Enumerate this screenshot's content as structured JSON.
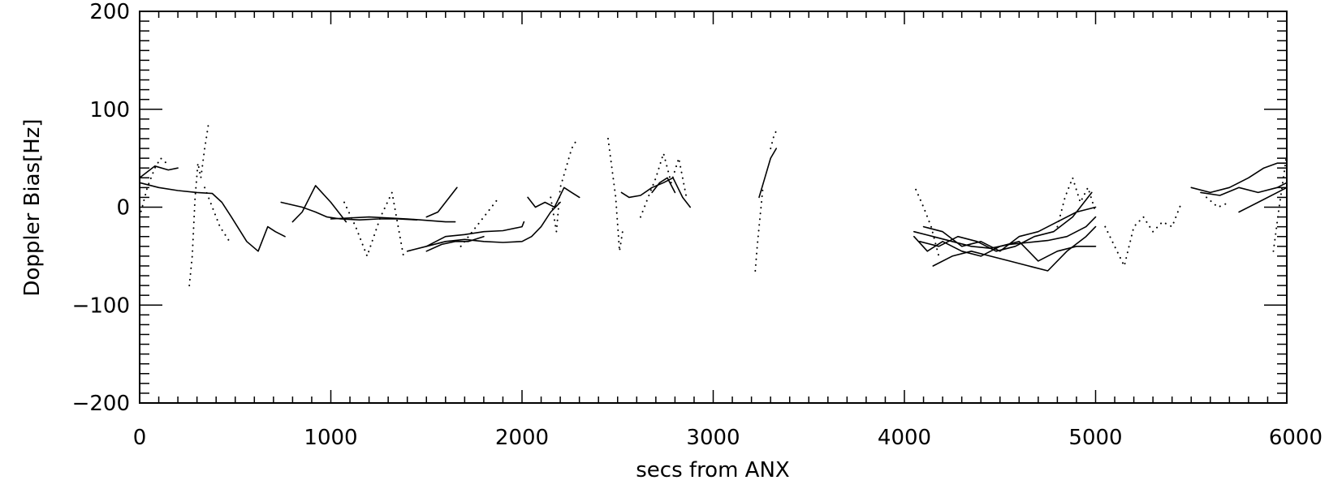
{
  "chart_data": {
    "type": "line",
    "title": "",
    "xlabel": "secs from ANX",
    "ylabel": "Doppler Bias[Hz]",
    "xlim": [
      0,
      6000
    ],
    "ylim": [
      -200,
      200
    ],
    "grid": false,
    "x_ticks": [
      0,
      1000,
      2000,
      3000,
      4000,
      5000,
      6000
    ],
    "x_tick_labels": [
      "0",
      "1000",
      "2000",
      "3000",
      "4000",
      "5000",
      "6000"
    ],
    "y_ticks": [
      -200,
      -100,
      0,
      100,
      200
    ],
    "y_tick_labels": [
      "−200",
      "−100",
      "0",
      "100",
      "200"
    ],
    "line_color": "#000000",
    "series": [
      {
        "style": "solid",
        "x": [
          0,
          80,
          150,
          200
        ],
        "y": [
          30,
          42,
          38,
          40
        ]
      },
      {
        "style": "dotted",
        "x": [
          0,
          40,
          80,
          110,
          140
        ],
        "y": [
          -10,
          20,
          40,
          50,
          45
        ]
      },
      {
        "style": "solid",
        "x": [
          0,
          100,
          200,
          300,
          380,
          430,
          480,
          560,
          620,
          670,
          710,
          760
        ],
        "y": [
          25,
          20,
          17,
          15,
          14,
          5,
          -10,
          -35,
          -45,
          -20,
          -25,
          -30
        ]
      },
      {
        "style": "dotted",
        "x": [
          260,
          275,
          290,
          305,
          320,
          340,
          360
        ],
        "y": [
          -80,
          -50,
          10,
          45,
          30,
          60,
          85
        ]
      },
      {
        "style": "dotted",
        "x": [
          340,
          380,
          420,
          470
        ],
        "y": [
          20,
          0,
          -20,
          -35
        ]
      },
      {
        "style": "solid",
        "x": [
          740,
          850,
          920,
          980,
          1050,
          1150,
          1250,
          1350,
          1450
        ],
        "y": [
          5,
          0,
          -5,
          -10,
          -12,
          -13,
          -12,
          -12,
          -13
        ]
      },
      {
        "style": "solid",
        "x": [
          800,
          850,
          920,
          1000,
          1080
        ],
        "y": [
          -15,
          -5,
          22,
          5,
          -15
        ]
      },
      {
        "style": "solid",
        "x": [
          1000,
          1200,
          1400,
          1600,
          1650
        ],
        "y": [
          -12,
          -10,
          -12,
          -15,
          -15
        ]
      },
      {
        "style": "dotted",
        "x": [
          1070,
          1130,
          1190,
          1260,
          1320,
          1380
        ],
        "y": [
          5,
          -20,
          -50,
          -10,
          15,
          -50
        ]
      },
      {
        "style": "solid",
        "x": [
          1400,
          1500,
          1600,
          1700,
          1800,
          1900,
          2000,
          2050,
          2100,
          2150,
          2200
        ],
        "y": [
          -45,
          -40,
          -35,
          -33,
          -35,
          -36,
          -35,
          -30,
          -20,
          -5,
          5
        ]
      },
      {
        "style": "solid",
        "x": [
          1500,
          1560,
          1620,
          1660
        ],
        "y": [
          -10,
          -5,
          10,
          20
        ]
      },
      {
        "style": "solid",
        "x": [
          1500,
          1600,
          1700,
          1800,
          1900,
          2000,
          2010
        ],
        "y": [
          -40,
          -30,
          -28,
          -25,
          -24,
          -20,
          -15
        ]
      },
      {
        "style": "solid",
        "x": [
          1500,
          1580,
          1650,
          1720,
          1800
        ],
        "y": [
          -45,
          -38,
          -35,
          -35,
          -30
        ]
      },
      {
        "style": "dotted",
        "x": [
          1680,
          1740,
          1800,
          1860,
          1880
        ],
        "y": [
          -40,
          -25,
          -10,
          5,
          10
        ]
      },
      {
        "style": "solid",
        "x": [
          2030,
          2070,
          2120,
          2170,
          2220,
          2260,
          2300
        ],
        "y": [
          10,
          0,
          5,
          0,
          20,
          15,
          10
        ]
      },
      {
        "style": "dotted",
        "x": [
          2150,
          2180,
          2200,
          2230,
          2260,
          2290
        ],
        "y": [
          10,
          -25,
          20,
          40,
          60,
          70
        ]
      },
      {
        "style": "dotted",
        "x": [
          2450,
          2470,
          2490,
          2510,
          2530
        ],
        "y": [
          70,
          40,
          10,
          -45,
          -20
        ]
      },
      {
        "style": "solid",
        "x": [
          2520,
          2560,
          2620,
          2680,
          2740,
          2790,
          2840,
          2880
        ],
        "y": [
          15,
          10,
          12,
          20,
          25,
          30,
          10,
          0
        ]
      },
      {
        "style": "dotted",
        "x": [
          2620,
          2660,
          2700,
          2740,
          2780,
          2820,
          2860
        ],
        "y": [
          -10,
          10,
          30,
          55,
          25,
          50,
          10
        ]
      },
      {
        "style": "solid",
        "x": [
          2680,
          2720,
          2760,
          2800
        ],
        "y": [
          15,
          25,
          30,
          15
        ]
      },
      {
        "style": "dotted",
        "x": [
          3220,
          3230,
          3240,
          3250,
          3260
        ],
        "y": [
          -65,
          -40,
          -20,
          0,
          20
        ]
      },
      {
        "style": "solid",
        "x": [
          3240,
          3270,
          3300,
          3330
        ],
        "y": [
          10,
          30,
          50,
          60
        ]
      },
      {
        "style": "dotted",
        "x": [
          3300,
          3320,
          3340
        ],
        "y": [
          60,
          75,
          80
        ]
      },
      {
        "style": "solid",
        "x": [
          4050,
          4150,
          4250,
          4350,
          4450,
          4550,
          4650,
          4750,
          4850,
          4950,
          5000
        ],
        "y": [
          -25,
          -30,
          -35,
          -40,
          -42,
          -38,
          -36,
          -34,
          -30,
          -20,
          -10
        ]
      },
      {
        "style": "solid",
        "x": [
          4050,
          4120,
          4200,
          4300,
          4400,
          4500,
          4600,
          4700,
          4800,
          4900,
          5000
        ],
        "y": [
          -30,
          -45,
          -35,
          -45,
          -50,
          -40,
          -35,
          -55,
          -45,
          -40,
          -40
        ]
      },
      {
        "style": "solid",
        "x": [
          4100,
          4200,
          4300,
          4400,
          4500,
          4600,
          4700,
          4800,
          4900,
          5000
        ],
        "y": [
          -20,
          -25,
          -40,
          -35,
          -45,
          -30,
          -25,
          -15,
          -5,
          0
        ]
      },
      {
        "style": "solid",
        "x": [
          4150,
          4250,
          4350,
          4450,
          4550,
          4650,
          4750,
          4850,
          4950,
          5000
        ],
        "y": [
          -60,
          -50,
          -45,
          -50,
          -55,
          -60,
          -65,
          -45,
          -30,
          -20
        ]
      },
      {
        "style": "solid",
        "x": [
          4080,
          4180,
          4280,
          4380,
          4480,
          4580,
          4680,
          4780,
          4880,
          4980
        ],
        "y": [
          -35,
          -40,
          -30,
          -35,
          -45,
          -40,
          -30,
          -25,
          -10,
          15
        ]
      },
      {
        "style": "dotted",
        "x": [
          4060,
          4100,
          4140,
          4180
        ],
        "y": [
          18,
          0,
          -20,
          -50
        ]
      },
      {
        "style": "dotted",
        "x": [
          4800,
          4840,
          4880,
          4920,
          4960,
          5000
        ],
        "y": [
          -20,
          10,
          30,
          5,
          20,
          -5
        ]
      },
      {
        "style": "dotted",
        "x": [
          5050,
          5100,
          5150,
          5200,
          5250,
          5300,
          5350,
          5400,
          5450
        ],
        "y": [
          -20,
          -40,
          -60,
          -20,
          -10,
          -25,
          -15,
          -20,
          5
        ]
      },
      {
        "style": "solid",
        "x": [
          5500,
          5600,
          5700,
          5800,
          5880,
          5950,
          6000
        ],
        "y": [
          20,
          15,
          20,
          30,
          40,
          45,
          45
        ]
      },
      {
        "style": "solid",
        "x": [
          5550,
          5650,
          5750,
          5850,
          5950,
          6000
        ],
        "y": [
          15,
          12,
          20,
          15,
          20,
          25
        ]
      },
      {
        "style": "dotted",
        "x": [
          5580,
          5640,
          5700
        ],
        "y": [
          10,
          0,
          5
        ]
      },
      {
        "style": "solid",
        "x": [
          5750,
          5850,
          5950,
          6000
        ],
        "y": [
          -5,
          5,
          15,
          20
        ]
      },
      {
        "style": "dotted",
        "x": [
          5930,
          5960,
          5990,
          6000
        ],
        "y": [
          -45,
          0,
          40,
          55
        ]
      }
    ]
  }
}
